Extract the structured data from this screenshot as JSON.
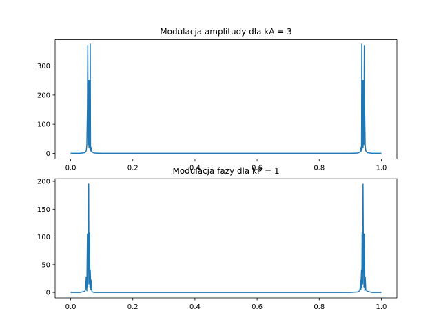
{
  "colors": {
    "line": "#1f77b4",
    "axes": "#000000",
    "background": "#ffffff"
  },
  "chart_data": [
    {
      "type": "line",
      "title": "Modulacja amplitudy dla kA = 3",
      "xlabel": "",
      "ylabel": "",
      "xlim": [
        -0.05,
        1.05
      ],
      "ylim": [
        -19,
        390
      ],
      "xticks": [
        0.0,
        0.2,
        0.4,
        0.6,
        0.8,
        1.0
      ],
      "xtick_labels": [
        "0.0",
        "0.2",
        "0.4",
        "0.6",
        "0.8",
        "1.0"
      ],
      "yticks": [
        0,
        100,
        200,
        300
      ],
      "ytick_labels": [
        "0",
        "100",
        "200",
        "300"
      ],
      "grid": false,
      "series": [
        {
          "x": [
            0.0,
            0.03,
            0.045,
            0.05,
            0.052,
            0.054,
            0.055,
            0.056,
            0.057,
            0.058,
            0.059,
            0.06,
            0.061,
            0.062,
            0.063,
            0.064,
            0.065,
            0.066,
            0.068,
            0.075,
            0.1,
            0.2,
            0.4,
            0.6,
            0.8,
            0.9,
            0.925,
            0.932,
            0.934,
            0.935,
            0.936,
            0.937,
            0.938,
            0.939,
            0.94,
            0.941,
            0.942,
            0.943,
            0.944,
            0.945,
            0.946,
            0.948,
            0.95,
            0.955,
            0.97,
            1.0
          ],
          "y": [
            0,
            0,
            2,
            8,
            28,
            160,
            370,
            30,
            150,
            250,
            20,
            250,
            120,
            15,
            375,
            25,
            8,
            20,
            5,
            1,
            0,
            0,
            0,
            0,
            0,
            0,
            1,
            5,
            20,
            8,
            25,
            375,
            15,
            120,
            250,
            20,
            250,
            150,
            30,
            370,
            160,
            28,
            8,
            2,
            0,
            0
          ]
        }
      ]
    },
    {
      "type": "line",
      "title": "Modulacja fazy dla kP = 1",
      "xlabel": "",
      "ylabel": "",
      "xlim": [
        -0.05,
        1.05
      ],
      "ylim": [
        -9.75,
        204.75
      ],
      "xticks": [
        0.0,
        0.2,
        0.4,
        0.6,
        0.8,
        1.0
      ],
      "xtick_labels": [
        "0.0",
        "0.2",
        "0.4",
        "0.6",
        "0.8",
        "1.0"
      ],
      "yticks": [
        0,
        50,
        100,
        150,
        200
      ],
      "ytick_labels": [
        "0",
        "50",
        "100",
        "150",
        "200"
      ],
      "grid": false,
      "series": [
        {
          "x": [
            0.0,
            0.03,
            0.045,
            0.048,
            0.05,
            0.052,
            0.053,
            0.054,
            0.055,
            0.056,
            0.057,
            0.058,
            0.059,
            0.06,
            0.061,
            0.062,
            0.063,
            0.064,
            0.065,
            0.066,
            0.067,
            0.068,
            0.07,
            0.075,
            0.1,
            0.2,
            0.4,
            0.6,
            0.8,
            0.9,
            0.925,
            0.93,
            0.932,
            0.933,
            0.934,
            0.935,
            0.936,
            0.937,
            0.938,
            0.939,
            0.94,
            0.941,
            0.942,
            0.943,
            0.944,
            0.945,
            0.946,
            0.947,
            0.948,
            0.95,
            0.955,
            0.97,
            1.0
          ],
          "y": [
            0,
            0,
            2,
            5,
            28,
            3,
            60,
            105,
            10,
            65,
            90,
            195,
            15,
            70,
            107,
            10,
            40,
            25,
            5,
            22,
            10,
            3,
            1,
            0,
            0,
            0,
            0,
            0,
            0,
            0,
            1,
            3,
            10,
            22,
            5,
            25,
            40,
            10,
            107,
            70,
            15,
            195,
            90,
            65,
            10,
            105,
            60,
            3,
            28,
            5,
            2,
            0,
            0
          ]
        }
      ]
    }
  ]
}
